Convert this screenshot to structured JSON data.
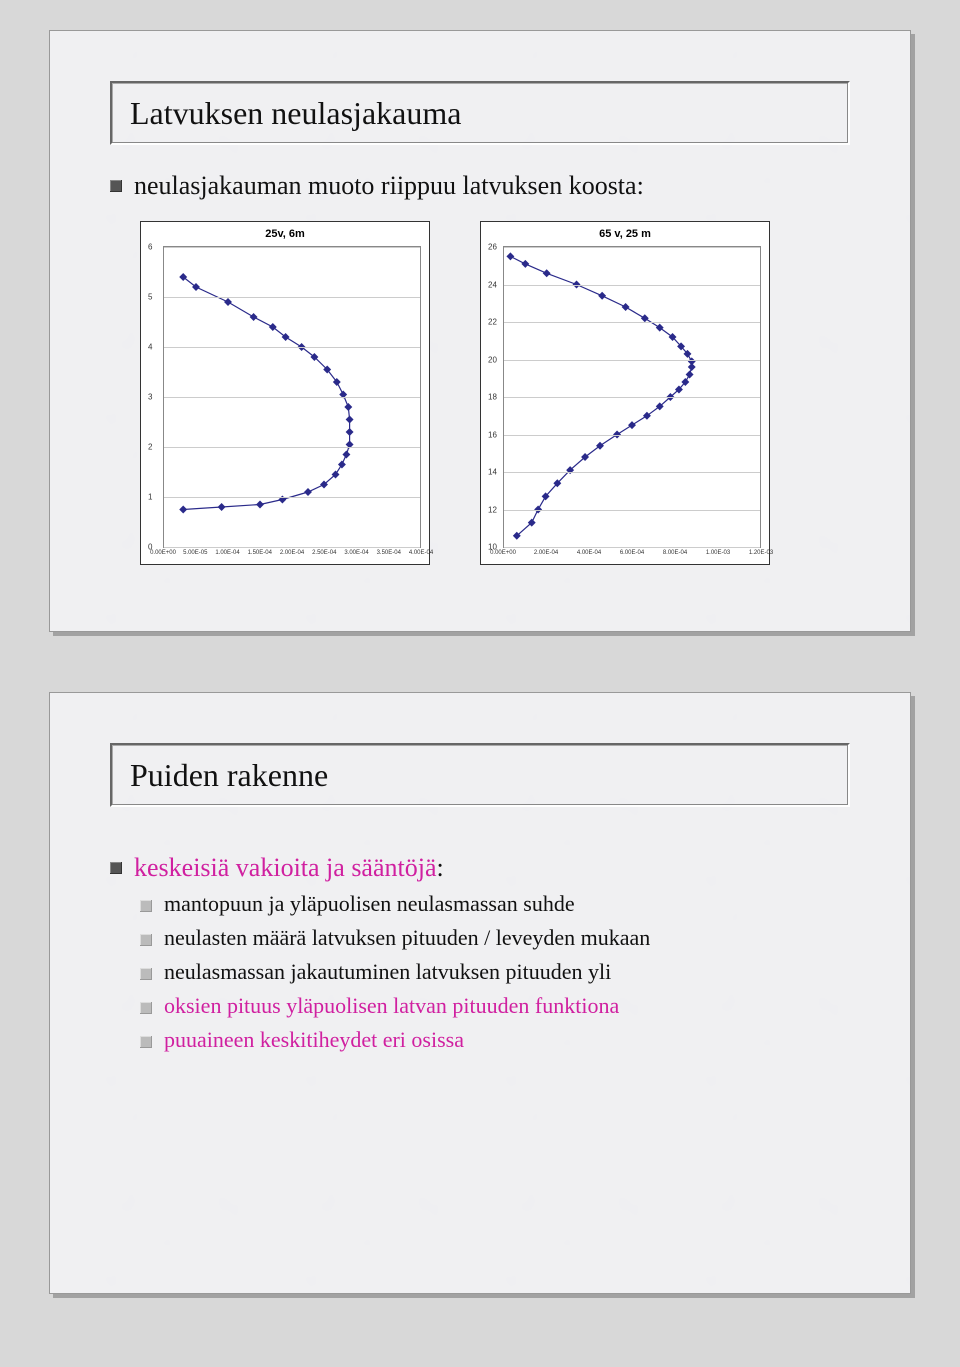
{
  "slide1": {
    "title": "Latvuksen neulasjakauma",
    "bullet": "neulasjakauman muoto riippuu latvuksen koosta:",
    "chart_left": {
      "title": "25v, 6m",
      "type": "line",
      "background_color": "#ffffff",
      "grid_color": "#cccccc",
      "line_color": "#2a2a8a",
      "marker": "diamond",
      "marker_size": 4,
      "ylim": [
        0,
        6
      ],
      "yticks": [
        0,
        1,
        2,
        3,
        4,
        5,
        6
      ],
      "xlim": [
        0,
        0.0004
      ],
      "xticks": [
        "0.00E+00",
        "5.00E-05",
        "1.00E-04",
        "1.50E-04",
        "2.00E-04",
        "2.50E-04",
        "3.00E-04",
        "3.50E-04",
        "4.00E-04"
      ],
      "points": [
        [
          3e-05,
          5.4
        ],
        [
          5e-05,
          5.2
        ],
        [
          0.0001,
          4.9
        ],
        [
          0.00014,
          4.6
        ],
        [
          0.00017,
          4.4
        ],
        [
          0.00019,
          4.2
        ],
        [
          0.000215,
          4.0
        ],
        [
          0.000235,
          3.8
        ],
        [
          0.000255,
          3.55
        ],
        [
          0.00027,
          3.3
        ],
        [
          0.00028,
          3.05
        ],
        [
          0.000288,
          2.8
        ],
        [
          0.00029,
          2.55
        ],
        [
          0.00029,
          2.3
        ],
        [
          0.00029,
          2.05
        ],
        [
          0.000285,
          1.85
        ],
        [
          0.000278,
          1.65
        ],
        [
          0.000268,
          1.45
        ],
        [
          0.00025,
          1.25
        ],
        [
          0.000225,
          1.1
        ],
        [
          0.000185,
          0.95
        ],
        [
          0.00015,
          0.85
        ],
        [
          9e-05,
          0.8
        ],
        [
          3e-05,
          0.75
        ]
      ]
    },
    "chart_right": {
      "title": "65 v, 25 m",
      "type": "line",
      "background_color": "#ffffff",
      "grid_color": "#cccccc",
      "line_color": "#2a2a8a",
      "marker": "diamond",
      "marker_size": 4,
      "ylim": [
        10,
        26
      ],
      "yticks": [
        10,
        12,
        14,
        16,
        18,
        20,
        22,
        24,
        26
      ],
      "xlim": [
        0,
        0.0012
      ],
      "xticks": [
        "0.00E+00",
        "2.00E-04",
        "4.00E-04",
        "6.00E-04",
        "8.00E-04",
        "1.00E-03",
        "1.20E-03"
      ],
      "points": [
        [
          3e-05,
          25.5
        ],
        [
          0.0001,
          25.1
        ],
        [
          0.0002,
          24.6
        ],
        [
          0.00034,
          24.0
        ],
        [
          0.00046,
          23.4
        ],
        [
          0.00057,
          22.8
        ],
        [
          0.00066,
          22.2
        ],
        [
          0.00073,
          21.7
        ],
        [
          0.00079,
          21.2
        ],
        [
          0.00083,
          20.7
        ],
        [
          0.00086,
          20.3
        ],
        [
          0.00088,
          19.9
        ],
        [
          0.00088,
          19.6
        ],
        [
          0.00087,
          19.2
        ],
        [
          0.00085,
          18.8
        ],
        [
          0.00082,
          18.4
        ],
        [
          0.00078,
          18.0
        ],
        [
          0.00073,
          17.5
        ],
        [
          0.00067,
          17.0
        ],
        [
          0.0006,
          16.5
        ],
        [
          0.00053,
          16.0
        ],
        [
          0.00045,
          15.4
        ],
        [
          0.00038,
          14.8
        ],
        [
          0.00031,
          14.1
        ],
        [
          0.00025,
          13.4
        ],
        [
          0.000195,
          12.7
        ],
        [
          0.00016,
          12.0
        ],
        [
          0.00013,
          11.3
        ],
        [
          6e-05,
          10.6
        ]
      ]
    }
  },
  "slide2": {
    "title": "Puiden rakenne",
    "main_bullet_pre": "keskeisiä vakioita ja sääntöjä",
    "main_bullet_suf": ":",
    "subs": [
      {
        "text": "mantopuun ja yläpuolisen neulasmassan suhde",
        "magenta": false
      },
      {
        "text": "neulasten määrä latvuksen pituuden / leveyden mukaan",
        "magenta": false
      },
      {
        "text": "neulasmassan jakautuminen latvuksen pituuden yli",
        "magenta": false
      },
      {
        "text": "oksien pituus yläpuolisen latvan pituuden funktiona",
        "magenta": true
      },
      {
        "text": "puuaineen keskitiheydet eri osissa",
        "magenta": true
      }
    ]
  }
}
